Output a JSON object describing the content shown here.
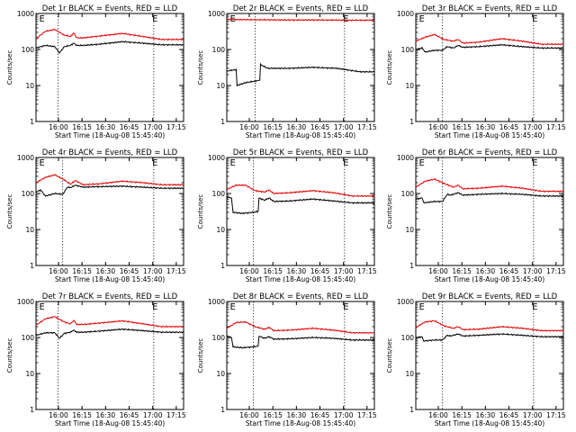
{
  "figure": {
    "background": "#ffffff",
    "colors": {
      "events": "#000000",
      "lld": "#e00000",
      "axis": "#000000",
      "marker": "#000000"
    }
  },
  "chart_data": [
    {
      "type": "line",
      "title": "Det 1r BLACK = Events, RED = LLD",
      "ylabel": "Counts/sec",
      "xlabel": "Start Time (18-Aug-08 15:45:40)",
      "yscale": "log",
      "ylim": [
        1,
        1000
      ],
      "ytick_labels": [
        "1",
        "10",
        "100",
        "1000"
      ],
      "x_unit": "minutes after 15:45:40",
      "xlim": [
        0,
        94
      ],
      "xtick_labels": [
        "16:00",
        "16:15",
        "16:30",
        "16:45",
        "17:00",
        "17:15"
      ],
      "grid": false,
      "markers": {
        "lines_at": [
          14,
          75
        ],
        "letters": [
          {
            "text": "E",
            "x": 2
          },
          {
            "text": "E",
            "x": 74
          }
        ]
      },
      "series": [
        {
          "role": "lld",
          "x": [
            0,
            6,
            12,
            18,
            22,
            24,
            26,
            30,
            40,
            55,
            68,
            80,
            94
          ],
          "y": [
            200,
            320,
            360,
            250,
            230,
            290,
            210,
            210,
            235,
            280,
            230,
            190,
            190
          ]
        },
        {
          "role": "events",
          "x": [
            0,
            6,
            12,
            15,
            18,
            22,
            24,
            26,
            30,
            40,
            55,
            68,
            80,
            94
          ],
          "y": [
            110,
            130,
            120,
            80,
            120,
            130,
            150,
            130,
            130,
            140,
            165,
            150,
            135,
            135
          ]
        }
      ]
    },
    {
      "type": "line",
      "title": "Det 2r BLACK = Events, RED = LLD",
      "ylabel": "Counts/sec",
      "xlabel": "Start Time (18-Aug-08 15:45:40)",
      "yscale": "log",
      "ylim": [
        1,
        1000
      ],
      "ytick_labels": [
        "1",
        "10",
        "100",
        "1000"
      ],
      "x_unit": "minutes after 15:45:40",
      "xlim": [
        0,
        94
      ],
      "xtick_labels": [
        "16:00",
        "16:15",
        "16:30",
        "16:45",
        "17:00",
        "17:15"
      ],
      "grid": false,
      "markers": {
        "lines_at": [
          18,
          75
        ],
        "letters": [
          {
            "text": "E",
            "x": 2
          },
          {
            "text": "E",
            "x": 74
          }
        ]
      },
      "series": [
        {
          "role": "lld",
          "x": [
            0,
            20,
            40,
            60,
            80,
            94
          ],
          "y": [
            680,
            670,
            660,
            660,
            650,
            650
          ]
        },
        {
          "role": "events",
          "x": [
            0,
            6,
            6.5,
            12,
            17,
            21,
            21.5,
            26,
            40,
            55,
            70,
            85,
            94
          ],
          "y": [
            25,
            28,
            10,
            12,
            13,
            14,
            38,
            30,
            30,
            32,
            30,
            24,
            24
          ]
        }
      ]
    },
    {
      "type": "line",
      "title": "Det 3r BLACK = Events, RED = LLD",
      "ylabel": "Counts/sec",
      "xlabel": "Start Time (18-Aug-08 15:45:40)",
      "yscale": "log",
      "ylim": [
        1,
        1000
      ],
      "ytick_labels": [
        "1",
        "10",
        "100",
        "1000"
      ],
      "x_unit": "minutes after 15:45:40",
      "xlim": [
        0,
        94
      ],
      "xtick_labels": [
        "16:00",
        "16:15",
        "16:30",
        "16:45",
        "17:00",
        "17:15"
      ],
      "grid": false,
      "markers": {
        "lines_at": [
          17,
          75
        ],
        "letters": [
          {
            "text": "E",
            "x": 2
          },
          {
            "text": "E",
            "x": 74
          }
        ]
      },
      "series": [
        {
          "role": "lld",
          "x": [
            0,
            6,
            12,
            18,
            24,
            27,
            30,
            40,
            55,
            68,
            80,
            94
          ],
          "y": [
            170,
            220,
            260,
            190,
            170,
            190,
            150,
            160,
            200,
            170,
            140,
            140
          ]
        },
        {
          "role": "events",
          "x": [
            0,
            4,
            6,
            12,
            17,
            20,
            24,
            27,
            30,
            40,
            55,
            68,
            80,
            94
          ],
          "y": [
            100,
            110,
            85,
            95,
            95,
            120,
            110,
            130,
            115,
            120,
            135,
            120,
            110,
            110
          ]
        }
      ]
    },
    {
      "type": "line",
      "title": "Det 4r BLACK = Events, RED = LLD",
      "ylabel": "Counts/sec",
      "xlabel": "Start Time (18-Aug-08 15:45:40)",
      "yscale": "log",
      "ylim": [
        1,
        1000
      ],
      "ytick_labels": [
        "1",
        "10",
        "100",
        "1000"
      ],
      "x_unit": "minutes after 15:45:40",
      "xlim": [
        0,
        94
      ],
      "xtick_labels": [
        "16:00",
        "16:15",
        "16:30",
        "16:45",
        "17:00",
        "17:15"
      ],
      "grid": false,
      "markers": {
        "lines_at": [
          17,
          75
        ],
        "letters": [
          {
            "text": "E",
            "x": 2
          },
          {
            "text": "E",
            "x": 74
          }
        ]
      },
      "series": [
        {
          "role": "lld",
          "x": [
            0,
            6,
            12,
            18,
            22,
            25,
            30,
            40,
            55,
            68,
            80,
            94
          ],
          "y": [
            200,
            280,
            330,
            240,
            180,
            230,
            175,
            185,
            220,
            200,
            175,
            175
          ]
        },
        {
          "role": "events",
          "x": [
            0,
            3,
            6,
            12,
            17,
            20,
            22,
            25,
            30,
            40,
            55,
            68,
            80,
            94
          ],
          "y": [
            110,
            125,
            85,
            100,
            95,
            150,
            145,
            170,
            150,
            155,
            160,
            150,
            140,
            140
          ]
        }
      ]
    },
    {
      "type": "line",
      "title": "Det 5r BLACK = Events, RED = LLD",
      "ylabel": "Counts/sec",
      "xlabel": "Start Time (18-Aug-08 15:45:40)",
      "yscale": "log",
      "ylim": [
        1,
        1000
      ],
      "ytick_labels": [
        "1",
        "10",
        "100",
        "1000"
      ],
      "x_unit": "minutes after 15:45:40",
      "xlim": [
        0,
        94
      ],
      "xtick_labels": [
        "16:00",
        "16:15",
        "16:30",
        "16:45",
        "17:00",
        "17:15"
      ],
      "grid": false,
      "markers": {
        "lines_at": [
          17,
          75
        ],
        "letters": [
          {
            "text": "E",
            "x": 2
          },
          {
            "text": "E",
            "x": 74
          }
        ]
      },
      "series": [
        {
          "role": "lld",
          "x": [
            0,
            6,
            12,
            18,
            24,
            27,
            30,
            40,
            55,
            68,
            80,
            94
          ],
          "y": [
            130,
            170,
            170,
            120,
            110,
            125,
            100,
            105,
            120,
            105,
            85,
            85
          ]
        },
        {
          "role": "events",
          "x": [
            0,
            3,
            4,
            10,
            17,
            20,
            20.5,
            24,
            27,
            30,
            40,
            55,
            68,
            80,
            94
          ],
          "y": [
            80,
            75,
            30,
            28,
            30,
            32,
            75,
            65,
            75,
            60,
            62,
            70,
            62,
            55,
            55
          ]
        }
      ]
    },
    {
      "type": "line",
      "title": "Det 6r BLACK = Events, RED = LLD",
      "ylabel": "Counts/sec",
      "xlabel": "Start Time (18-Aug-08 15:45:40)",
      "yscale": "log",
      "ylim": [
        1,
        1000
      ],
      "ytick_labels": [
        "1",
        "10",
        "100",
        "1000"
      ],
      "x_unit": "minutes after 15:45:40",
      "xlim": [
        0,
        94
      ],
      "xtick_labels": [
        "16:00",
        "16:15",
        "16:30",
        "16:45",
        "17:00",
        "17:15"
      ],
      "grid": false,
      "markers": {
        "lines_at": [
          17,
          75
        ],
        "letters": [
          {
            "text": "E",
            "x": 2
          },
          {
            "text": "E",
            "x": 74
          }
        ]
      },
      "series": [
        {
          "role": "lld",
          "x": [
            0,
            6,
            12,
            18,
            24,
            27,
            30,
            40,
            55,
            68,
            80,
            94
          ],
          "y": [
            150,
            220,
            250,
            190,
            150,
            170,
            135,
            140,
            160,
            140,
            115,
            115
          ]
        },
        {
          "role": "events",
          "x": [
            0,
            4,
            5,
            12,
            17,
            20,
            22,
            27,
            30,
            40,
            55,
            68,
            80,
            94
          ],
          "y": [
            70,
            75,
            55,
            60,
            60,
            95,
            90,
            105,
            90,
            95,
            100,
            95,
            85,
            85
          ]
        }
      ]
    },
    {
      "type": "line",
      "title": "Det 7r BLACK = Events, RED = LLD",
      "ylabel": "Counts/sec",
      "xlabel": "Start Time (18-Aug-08 15:45:40)",
      "yscale": "log",
      "ylim": [
        1,
        1000
      ],
      "ytick_labels": [
        "1",
        "10",
        "100",
        "1000"
      ],
      "x_unit": "minutes after 15:45:40",
      "xlim": [
        0,
        94
      ],
      "xtick_labels": [
        "16:00",
        "16:15",
        "16:30",
        "16:45",
        "17:00",
        "17:15"
      ],
      "grid": false,
      "markers": {
        "lines_at": [
          14,
          75
        ],
        "letters": [
          {
            "text": "E",
            "x": 2
          },
          {
            "text": "E",
            "x": 74
          }
        ]
      },
      "series": [
        {
          "role": "lld",
          "x": [
            0,
            6,
            12,
            18,
            22,
            24,
            26,
            30,
            40,
            55,
            68,
            80,
            94
          ],
          "y": [
            220,
            330,
            380,
            270,
            240,
            300,
            230,
            230,
            250,
            290,
            240,
            200,
            200
          ]
        },
        {
          "role": "events",
          "x": [
            0,
            6,
            12,
            15,
            18,
            22,
            24,
            26,
            30,
            40,
            55,
            68,
            80,
            94
          ],
          "y": [
            115,
            135,
            135,
            95,
            130,
            140,
            160,
            140,
            140,
            150,
            170,
            155,
            140,
            140
          ]
        }
      ]
    },
    {
      "type": "line",
      "title": "Det 8r BLACK = Events, RED = LLD",
      "ylabel": "Counts/sec",
      "xlabel": "Start Time (18-Aug-08 15:45:40)",
      "yscale": "log",
      "ylim": [
        1,
        1000
      ],
      "ytick_labels": [
        "1",
        "10",
        "100",
        "1000"
      ],
      "x_unit": "minutes after 15:45:40",
      "xlim": [
        0,
        94
      ],
      "xtick_labels": [
        "16:00",
        "16:15",
        "16:30",
        "16:45",
        "17:00",
        "17:15"
      ],
      "grid": false,
      "markers": {
        "lines_at": [
          17,
          75
        ],
        "letters": [
          {
            "text": "E",
            "x": 2
          },
          {
            "text": "E",
            "x": 74
          }
        ]
      },
      "series": [
        {
          "role": "lld",
          "x": [
            0,
            6,
            12,
            18,
            24,
            27,
            30,
            40,
            55,
            68,
            80,
            94
          ],
          "y": [
            180,
            260,
            270,
            200,
            170,
            190,
            155,
            160,
            180,
            160,
            135,
            135
          ]
        },
        {
          "role": "events",
          "x": [
            0,
            3,
            4,
            10,
            17,
            20,
            20.5,
            24,
            27,
            30,
            40,
            55,
            68,
            80,
            94
          ],
          "y": [
            110,
            100,
            55,
            52,
            55,
            58,
            110,
            95,
            105,
            90,
            92,
            100,
            95,
            85,
            85
          ]
        }
      ]
    },
    {
      "type": "line",
      "title": "Det 9r BLACK = Events, RED = LLD",
      "ylabel": "Counts/sec",
      "xlabel": "Start Time (18-Aug-08 15:45:40)",
      "yscale": "log",
      "ylim": [
        1,
        1000
      ],
      "ytick_labels": [
        "1",
        "10",
        "100",
        "1000"
      ],
      "x_unit": "minutes after 15:45:40",
      "xlim": [
        0,
        94
      ],
      "xtick_labels": [
        "16:00",
        "16:15",
        "16:30",
        "16:45",
        "17:00",
        "17:15"
      ],
      "grid": false,
      "markers": {
        "lines_at": [
          17,
          75
        ],
        "letters": [
          {
            "text": "E",
            "x": 2
          },
          {
            "text": "E",
            "x": 74
          }
        ]
      },
      "series": [
        {
          "role": "lld",
          "x": [
            0,
            6,
            12,
            18,
            24,
            27,
            30,
            40,
            55,
            68,
            80,
            94
          ],
          "y": [
            190,
            270,
            290,
            210,
            180,
            200,
            165,
            170,
            200,
            180,
            155,
            155
          ]
        },
        {
          "role": "events",
          "x": [
            0,
            4,
            5,
            12,
            17,
            20,
            22,
            27,
            30,
            40,
            55,
            68,
            80,
            94
          ],
          "y": [
            100,
            105,
            80,
            85,
            85,
            115,
            110,
            125,
            110,
            115,
            125,
            115,
            105,
            105
          ]
        }
      ]
    }
  ]
}
